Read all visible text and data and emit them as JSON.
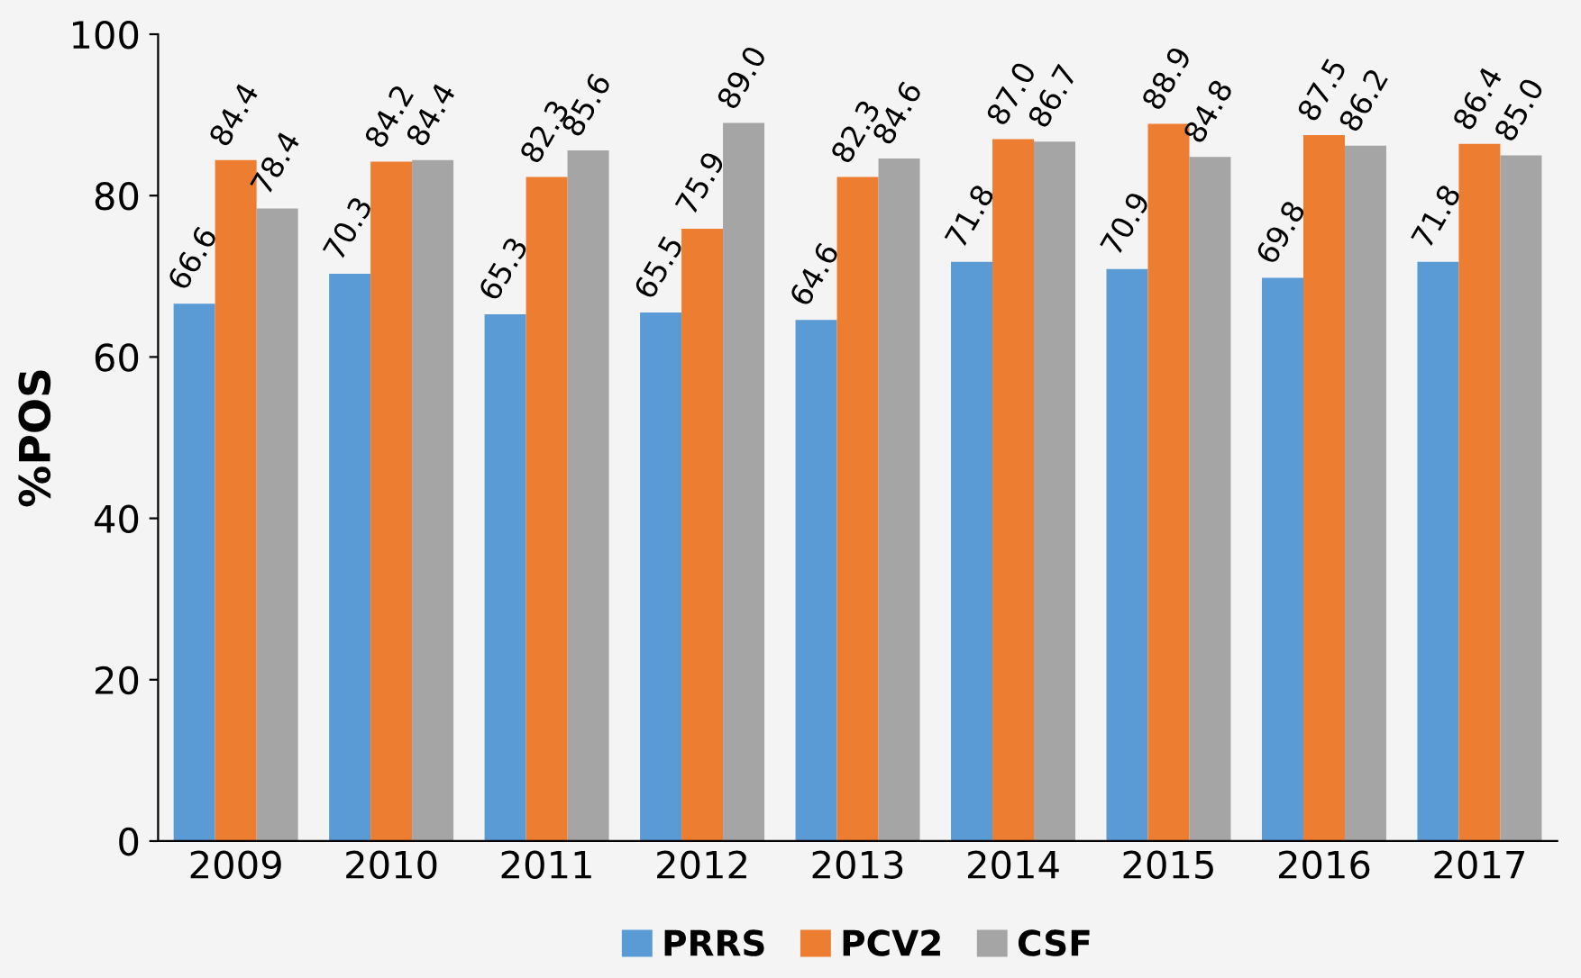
{
  "chart_data": {
    "type": "bar",
    "ylabel": "%POS",
    "categories": [
      "2009",
      "2010",
      "2011",
      "2012",
      "2013",
      "2014",
      "2015",
      "2016",
      "2017"
    ],
    "series": [
      {
        "name": "PRRS",
        "color": "#5b9bd5",
        "values": [
          66.6,
          70.3,
          65.3,
          65.5,
          64.6,
          71.8,
          70.9,
          69.8,
          71.8
        ]
      },
      {
        "name": "PCV2",
        "color": "#ed7d31",
        "values": [
          84.4,
          84.2,
          82.3,
          75.9,
          82.3,
          87.0,
          88.9,
          87.5,
          86.4
        ]
      },
      {
        "name": "CSF",
        "color": "#a5a5a5",
        "values": [
          78.4,
          84.4,
          85.6,
          89.0,
          84.6,
          86.7,
          84.8,
          86.2,
          85.0
        ]
      }
    ],
    "value_labels": [
      [
        "66.6",
        "70.3",
        "65.3",
        "65.5",
        "64.6",
        "71.8",
        "70.9",
        "69.8",
        "71.8"
      ],
      [
        "84.4",
        "84.2",
        "82.3",
        "75.9",
        "82.3",
        "87.0",
        "88.9",
        "87.5",
        "86.4"
      ],
      [
        "78.4",
        "84.4",
        "85.6",
        "89.0",
        "84.6",
        "86.7",
        "84.8",
        "86.2",
        "85.0"
      ]
    ],
    "ylim": [
      0,
      100
    ],
    "yticks": [
      0,
      20,
      40,
      60,
      80,
      100
    ],
    "grid": false,
    "legend": "bottom"
  }
}
